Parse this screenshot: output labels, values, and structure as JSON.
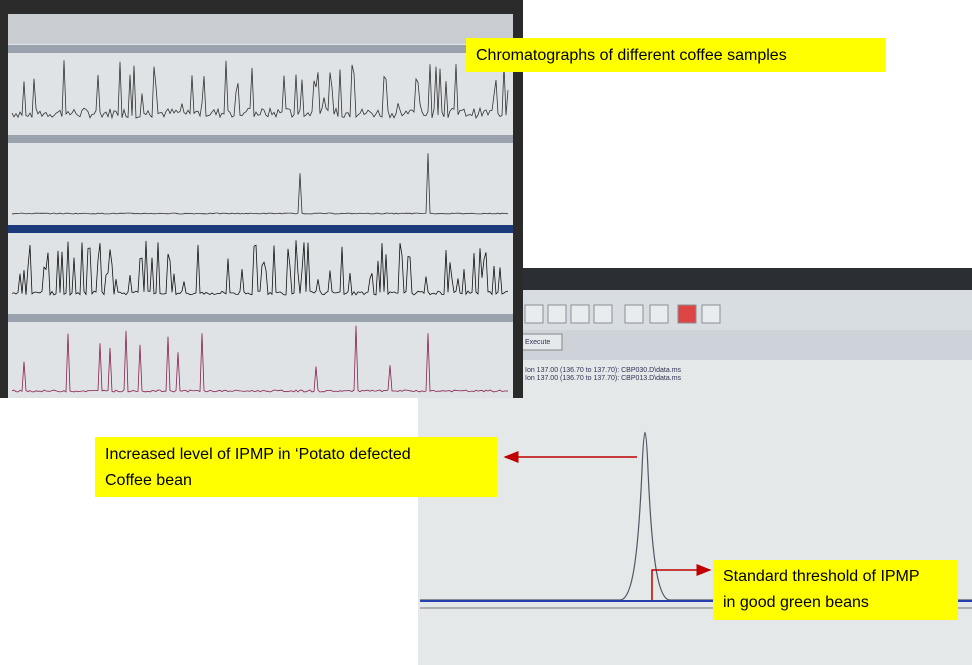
{
  "callouts": {
    "title": "Chromatographs of different coffee samples",
    "increased": [
      "Increased level of IPMP in ‘Potato defected",
      "Coffee bean"
    ],
    "threshold": [
      "Standard threshold of IPMP",
      "in good green beans"
    ]
  },
  "screen": {
    "button": "Execute",
    "ions": [
      "Ion 137.00 (136.70 to 137.70): CBP030.D\\data.ms",
      "Ion 137.00 (136.70 to 137.70): CBP013.D\\data.ms"
    ]
  }
}
